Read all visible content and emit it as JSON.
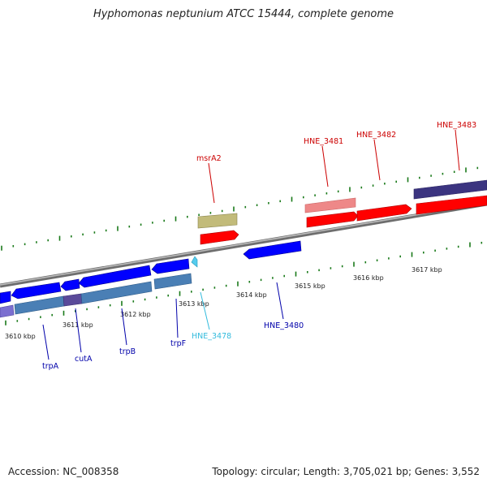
{
  "title": "Hyphomonas neptunium ATCC 15444, complete genome",
  "footer": {
    "accession": "Accession: NC_008358",
    "summary": "Topology: circular; Length: 3,705,021 bp; Genes: 3,552"
  },
  "ruler": [
    "3610 kbp",
    "3611 kbp",
    "3612 kbp",
    "3613 kbp",
    "3614 kbp",
    "3615 kbp",
    "3616 kbp",
    "3617 kbp"
  ],
  "gene_labels": [
    "msrA2",
    "HNE_3481",
    "HNE_3482",
    "HNE_3483",
    "trpA",
    "cutA",
    "trpB",
    "trpF",
    "HNE_3478",
    "HNE_3480"
  ],
  "colors": {
    "backbone": "#8a8a8a",
    "tick": "#1a7a1a",
    "forward_label": "#cc0000",
    "reverse_label": "#0000aa",
    "rna_label": "#33bbdd",
    "cds_forward": "#ff0000",
    "cds_reverse": "#0000ff",
    "feature_olive": "#c2bb7a",
    "feature_pink": "#ee8888",
    "feature_steel": "#4a7fb5",
    "feature_navy": "#3b3480"
  }
}
